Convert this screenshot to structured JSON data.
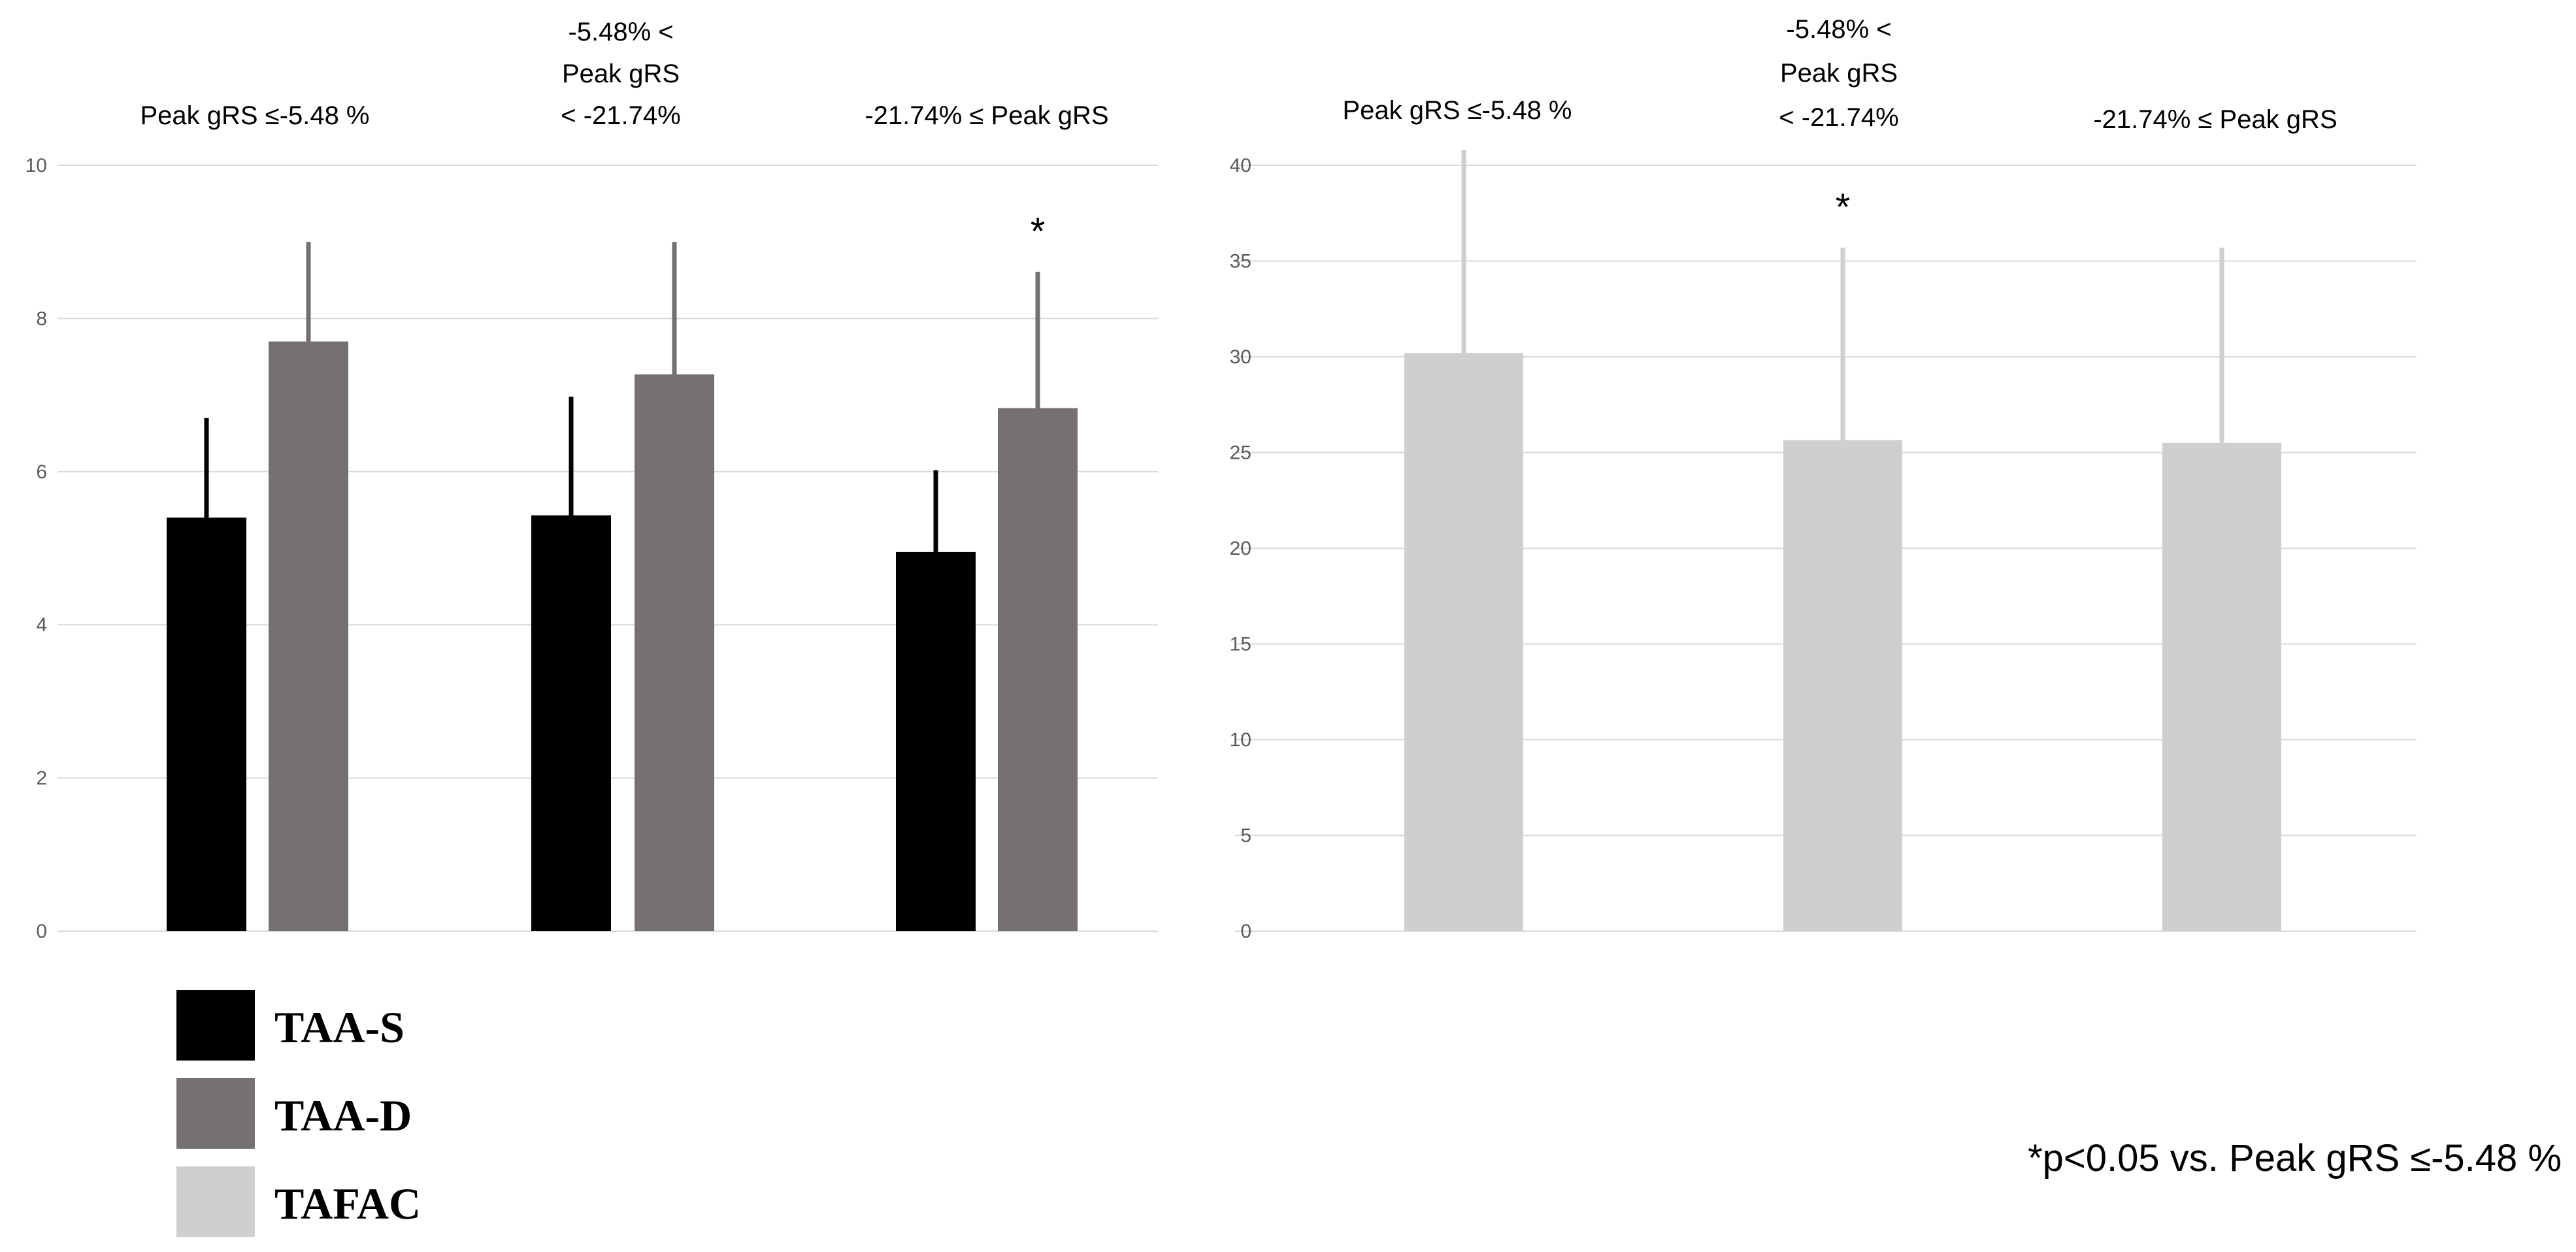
{
  "chart_data": [
    {
      "type": "bar",
      "title": "",
      "xlabel": "",
      "ylabel": "",
      "ylim": [
        0,
        10
      ],
      "yticks": [
        0,
        2,
        4,
        6,
        8,
        10
      ],
      "grid": true,
      "categories": [
        [
          "Peak gRS ≤-5.48 %"
        ],
        [
          "-5.48% <",
          "Peak gRS",
          "< -21.74%"
        ],
        [
          "-21.74% ≤ Peak gRS"
        ]
      ],
      "series": [
        {
          "name": "TAA-S",
          "color": "#000000",
          "values": [
            5.4,
            5.43,
            4.95
          ],
          "error": [
            1.3,
            1.55,
            1.07
          ]
        },
        {
          "name": "TAA-D",
          "color": "#767171",
          "values": [
            7.7,
            7.27,
            6.83
          ],
          "error": [
            1.3,
            1.73,
            1.78
          ]
        }
      ],
      "annotations": [
        {
          "text": "*",
          "category_index": 2,
          "series": "TAA-D"
        }
      ]
    },
    {
      "type": "bar",
      "title": "",
      "xlabel": "",
      "ylabel": "",
      "ylim": [
        0,
        40
      ],
      "yticks": [
        0,
        5,
        10,
        15,
        20,
        25,
        30,
        35,
        40
      ],
      "grid": true,
      "categories": [
        [
          "Peak gRS ≤-5.48 %"
        ],
        [
          "-5.48% <",
          "Peak gRS",
          "< -21.74%"
        ],
        [
          "-21.74% ≤ Peak gRS"
        ]
      ],
      "series": [
        {
          "name": "TAFAC",
          "color": "#d0cece",
          "values": [
            30.2,
            25.65,
            25.5
          ],
          "error": [
            10.6,
            10.05,
            10.2
          ]
        }
      ],
      "annotations": [
        {
          "text": "*",
          "category_index": 1,
          "series": "TAFAC"
        }
      ]
    }
  ],
  "legend": {
    "items": [
      {
        "label": "TAA-S",
        "color": "#000000"
      },
      {
        "label": "TAA-D",
        "color": "#767171"
      },
      {
        "label": "TAFAC",
        "color": "#d0cece"
      }
    ]
  },
  "footnote": "*p<0.05 vs. Peak gRS ≤-5.48 %"
}
